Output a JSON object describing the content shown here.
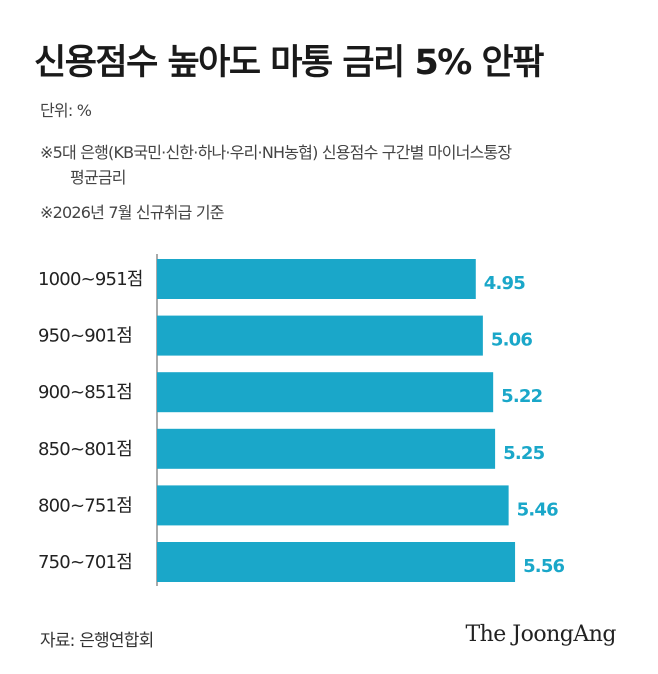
{
  "title": "신용점수 높아도 마통 금리 5% 안팎",
  "unit": "단위: %",
  "notes": [
    "※5대 은행(KB국민·신한·하나·우리·NH농협) 신용점수 구간별 마이너스통장",
    "평균금리",
    "※2026년 7월 신규취급 기준"
  ],
  "source": "자료: 은행연합회",
  "logo": "The JoongAng",
  "colors": {
    "bar": "#1aa7c9",
    "value_label": "#1aa7c9"
  },
  "chart_data": {
    "type": "bar",
    "orientation": "horizontal",
    "categories": [
      "1000~951점",
      "950~901점",
      "900~851점",
      "850~801점",
      "800~751점",
      "750~701점"
    ],
    "values": [
      4.95,
      5.06,
      5.22,
      5.25,
      5.46,
      5.56
    ],
    "value_labels": [
      "4.95",
      "5.06",
      "5.22",
      "5.25",
      "5.46",
      "5.56"
    ],
    "title": "신용점수 높아도 마통 금리 5% 안팎",
    "xlabel": "",
    "ylabel": "",
    "xlim": [
      0,
      6.25
    ],
    "grid": false,
    "legend": "none"
  }
}
